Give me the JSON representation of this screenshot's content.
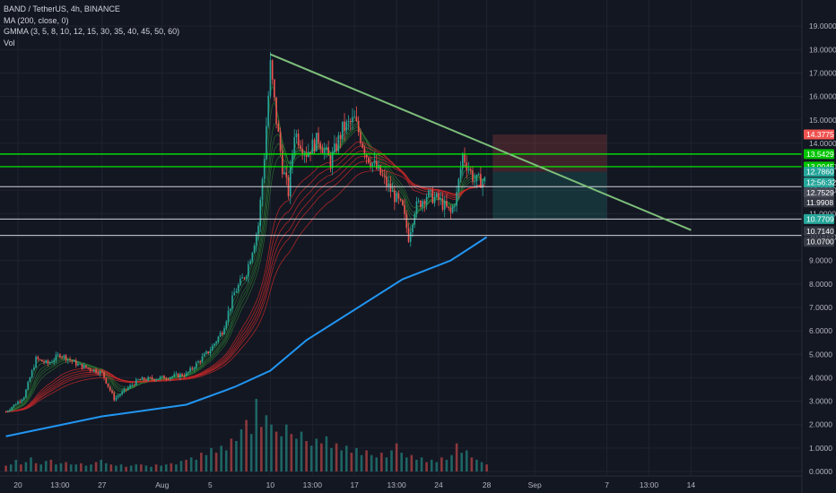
{
  "legend": {
    "symbol_line": "BAND / TetherUS, 4h, BINANCE",
    "ma_line": "MA (200, close, 0)",
    "gmma_line": "GMMA (3, 5, 8, 10, 12, 15, 30, 35, 40, 45, 50, 60)",
    "vol_line": "Vol"
  },
  "colors": {
    "background": "#131722",
    "grid": "#1f2330",
    "up": "#26a69a",
    "down": "#ef5350",
    "ma200": "#2196f3",
    "trendline": "#7dbf7a",
    "green_level": "#00ff00",
    "white_level": "#d1d4dc",
    "stop_zone": "#ef5350",
    "target_zone": "#26a69a"
  },
  "chart_data": {
    "type": "candlestick",
    "title": "BAND / TetherUS, 4h, BINANCE",
    "y_axis": {
      "side": "right",
      "ylim": [
        -0.2,
        19.5
      ],
      "tick_labels": [
        "19.0000",
        "18.0000",
        "17.0000",
        "16.0000",
        "15.0000",
        "14.0000",
        "13.0000",
        "12.0000",
        "11.0000",
        "10.0000",
        "9.0000",
        "8.0000",
        "7.0000",
        "6.0000",
        "5.0000",
        "4.0000",
        "3.0000",
        "2.0000",
        "1.0000",
        "0.0000"
      ],
      "tick_values": [
        19,
        18,
        17,
        16,
        15,
        14,
        13,
        12,
        11,
        10,
        9,
        8,
        7,
        6,
        5,
        4,
        3,
        2,
        1,
        0
      ]
    },
    "x_axis": {
      "tick_labels": [
        "20",
        "13:00",
        "27",
        "Aug",
        "5",
        "10",
        "13:00",
        "17",
        "13:00",
        "24",
        "28",
        "Sep",
        "7",
        "13:00",
        "14"
      ],
      "tick_dates": [
        "2020-07-20 00:00",
        "2020-07-23 12:00",
        "2020-07-27 00:00",
        "2020-08-01 00:00",
        "2020-08-05 00:00",
        "2020-08-10 00:00",
        "2020-08-13 12:00",
        "2020-08-17 00:00",
        "2020-08-20 12:00",
        "2020-08-24 00:00",
        "2020-08-28 00:00",
        "2020-09-01 00:00",
        "2020-09-07 00:00",
        "2020-09-10 12:00",
        "2020-09-14 00:00"
      ]
    },
    "price_path": [
      {
        "date": "2020-07-19 00:00",
        "price": 2.55
      },
      {
        "date": "2020-07-20 12:00",
        "price": 3.2
      },
      {
        "date": "2020-07-21 12:00",
        "price": 4.8
      },
      {
        "date": "2020-07-22 12:00",
        "price": 4.6
      },
      {
        "date": "2020-07-23 12:00",
        "price": 5.0
      },
      {
        "date": "2020-07-25 00:00",
        "price": 4.55
      },
      {
        "date": "2020-07-27 00:00",
        "price": 4.2
      },
      {
        "date": "2020-07-28 00:00",
        "price": 3.1
      },
      {
        "date": "2020-07-30 00:00",
        "price": 3.9
      },
      {
        "date": "2020-08-01 00:00",
        "price": 4.0
      },
      {
        "date": "2020-08-03 00:00",
        "price": 4.15
      },
      {
        "date": "2020-08-05 00:00",
        "price": 5.2
      },
      {
        "date": "2020-08-06 00:00",
        "price": 6.0
      },
      {
        "date": "2020-08-07 00:00",
        "price": 7.6
      },
      {
        "date": "2020-08-08 00:00",
        "price": 8.5
      },
      {
        "date": "2020-08-09 00:00",
        "price": 10.5
      },
      {
        "date": "2020-08-09 12:00",
        "price": 13.5
      },
      {
        "date": "2020-08-10 00:00",
        "price": 17.3
      },
      {
        "date": "2020-08-10 12:00",
        "price": 15.0
      },
      {
        "date": "2020-08-11 00:00",
        "price": 13.0
      },
      {
        "date": "2020-08-11 12:00",
        "price": 11.9
      },
      {
        "date": "2020-08-12 00:00",
        "price": 14.5
      },
      {
        "date": "2020-08-13 00:00",
        "price": 13.6
      },
      {
        "date": "2020-08-14 00:00",
        "price": 14.2
      },
      {
        "date": "2020-08-15 00:00",
        "price": 13.2
      },
      {
        "date": "2020-08-16 00:00",
        "price": 14.6
      },
      {
        "date": "2020-08-17 00:00",
        "price": 15.0
      },
      {
        "date": "2020-08-18 00:00",
        "price": 13.5
      },
      {
        "date": "2020-08-19 00:00",
        "price": 12.8
      },
      {
        "date": "2020-08-20 00:00",
        "price": 12.0
      },
      {
        "date": "2020-08-21 00:00",
        "price": 11.2
      },
      {
        "date": "2020-08-21 12:00",
        "price": 10.0
      },
      {
        "date": "2020-08-22 00:00",
        "price": 11.2
      },
      {
        "date": "2020-08-23 00:00",
        "price": 11.8
      },
      {
        "date": "2020-08-24 00:00",
        "price": 11.6
      },
      {
        "date": "2020-08-25 00:00",
        "price": 11.0
      },
      {
        "date": "2020-08-25 12:00",
        "price": 11.8
      },
      {
        "date": "2020-08-26 00:00",
        "price": 13.5
      },
      {
        "date": "2020-08-27 00:00",
        "price": 12.4
      },
      {
        "date": "2020-08-28 00:00",
        "price": 12.4
      }
    ],
    "ma200": [
      {
        "date": "2020-07-19 00:00",
        "price": 1.5
      },
      {
        "date": "2020-07-27 00:00",
        "price": 2.35
      },
      {
        "date": "2020-08-03 00:00",
        "price": 2.85
      },
      {
        "date": "2020-08-07 00:00",
        "price": 3.6
      },
      {
        "date": "2020-08-10 00:00",
        "price": 4.3
      },
      {
        "date": "2020-08-13 00:00",
        "price": 5.6
      },
      {
        "date": "2020-08-17 00:00",
        "price": 6.9
      },
      {
        "date": "2020-08-21 00:00",
        "price": 8.2
      },
      {
        "date": "2020-08-25 00:00",
        "price": 9.0
      },
      {
        "date": "2020-08-28 00:00",
        "price": 10.0
      }
    ],
    "trendline": [
      {
        "date": "2020-08-10 00:00",
        "price": 17.8
      },
      {
        "date": "2020-09-14 00:00",
        "price": 10.3
      }
    ],
    "levels": {
      "green": [
        13.5429,
        13.0045
      ],
      "white": [
        12.1532,
        10.7709,
        10.07
      ]
    },
    "position_tool": {
      "start_date": "2020-08-28 12:00",
      "end_date": "2020-09-07 00:00",
      "entry": 12.786,
      "stop": 14.3775,
      "target": 10.7709
    },
    "price_tags": [
      {
        "label": "14.3775",
        "price": 14.3775,
        "color": "#ef5350"
      },
      {
        "label": "13.5429",
        "price": 13.5429,
        "color": "#00c400"
      },
      {
        "label": "13.0045",
        "price": 13.0045,
        "color": "#00c400"
      },
      {
        "label": "12.7860",
        "price": 12.786,
        "color": "#26a69a"
      },
      {
        "label": "12:56:32",
        "price": 12.33,
        "color": "#26a69a"
      },
      {
        "label": "12.7529",
        "price": 11.9,
        "color": "#4a4e5a"
      },
      {
        "label": "11.9908",
        "price": 11.48,
        "color": "#363a45"
      },
      {
        "label": "10.7709",
        "price": 10.7709,
        "color": "#26a69a"
      },
      {
        "label": "10.7140",
        "price": 10.25,
        "color": "#363a45"
      },
      {
        "label": "10.0700",
        "price": 9.8,
        "color": "#363a45"
      }
    ],
    "volume_bars": [
      0.25,
      0.3,
      0.5,
      0.3,
      0.4,
      0.6,
      0.35,
      0.3,
      0.45,
      0.5,
      0.3,
      0.35,
      0.4,
      0.3,
      0.3,
      0.35,
      0.25,
      0.3,
      0.4,
      0.5,
      0.35,
      0.3,
      0.25,
      0.3,
      0.2,
      0.25,
      0.3,
      0.3,
      0.25,
      0.2,
      0.3,
      0.25,
      0.3,
      0.35,
      0.3,
      0.45,
      0.5,
      0.6,
      0.5,
      0.8,
      0.7,
      1.0,
      0.8,
      1.1,
      0.9,
      1.4,
      1.3,
      1.8,
      2.2,
      1.6,
      3.1,
      1.9,
      2.4,
      2.0,
      1.7,
      1.5,
      2.0,
      1.6,
      1.4,
      1.7,
      1.3,
      1.1,
      1.4,
      1.2,
      1.5,
      1.0,
      1.2,
      0.9,
      1.1,
      0.8,
      1.0,
      0.7,
      0.9,
      0.7,
      0.6,
      0.8,
      0.6,
      0.9,
      1.2,
      0.8,
      0.6,
      0.7,
      0.5,
      0.6,
      0.4,
      0.5,
      0.4,
      0.6,
      0.5,
      0.7,
      1.2,
      0.8,
      0.9,
      0.6,
      0.5,
      0.4,
      0.3
    ]
  }
}
